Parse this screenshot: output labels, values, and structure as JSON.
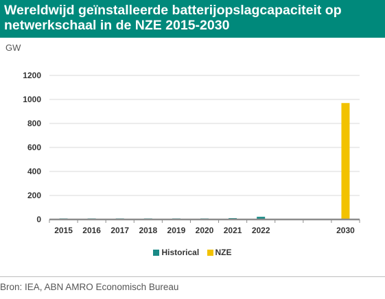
{
  "header": {
    "title_line1": "Wereldwijd geïnstalleerde batterijopslagcapaciteit op",
    "title_line2": "netwerkschaal in de NZE 2015-2030"
  },
  "source": "Bron: IEA, ABN AMRO Economisch Bureau",
  "colors": {
    "title_bg": "#00897b",
    "historical": "#1a8a86",
    "nze": "#f2c200"
  },
  "chart_data": {
    "type": "bar",
    "unit_label": "GW",
    "xlabel": "",
    "ylabel": "",
    "ylim": [
      0,
      1200
    ],
    "yticks": [
      0,
      200,
      400,
      600,
      800,
      1000,
      1200
    ],
    "categories": [
      "2015",
      "2016",
      "2017",
      "2018",
      "2019",
      "2020",
      "2021",
      "2022",
      "",
      "",
      "2030"
    ],
    "series": [
      {
        "name": "Historical",
        "color": "#1a8a86",
        "values": [
          1,
          2,
          3,
          4,
          6,
          8,
          11,
          22,
          null,
          null,
          null
        ]
      },
      {
        "name": "NZE",
        "color": "#f2c200",
        "values": [
          null,
          null,
          null,
          null,
          null,
          null,
          null,
          null,
          null,
          null,
          970
        ]
      }
    ],
    "grid": true,
    "legend_position": "bottom"
  }
}
